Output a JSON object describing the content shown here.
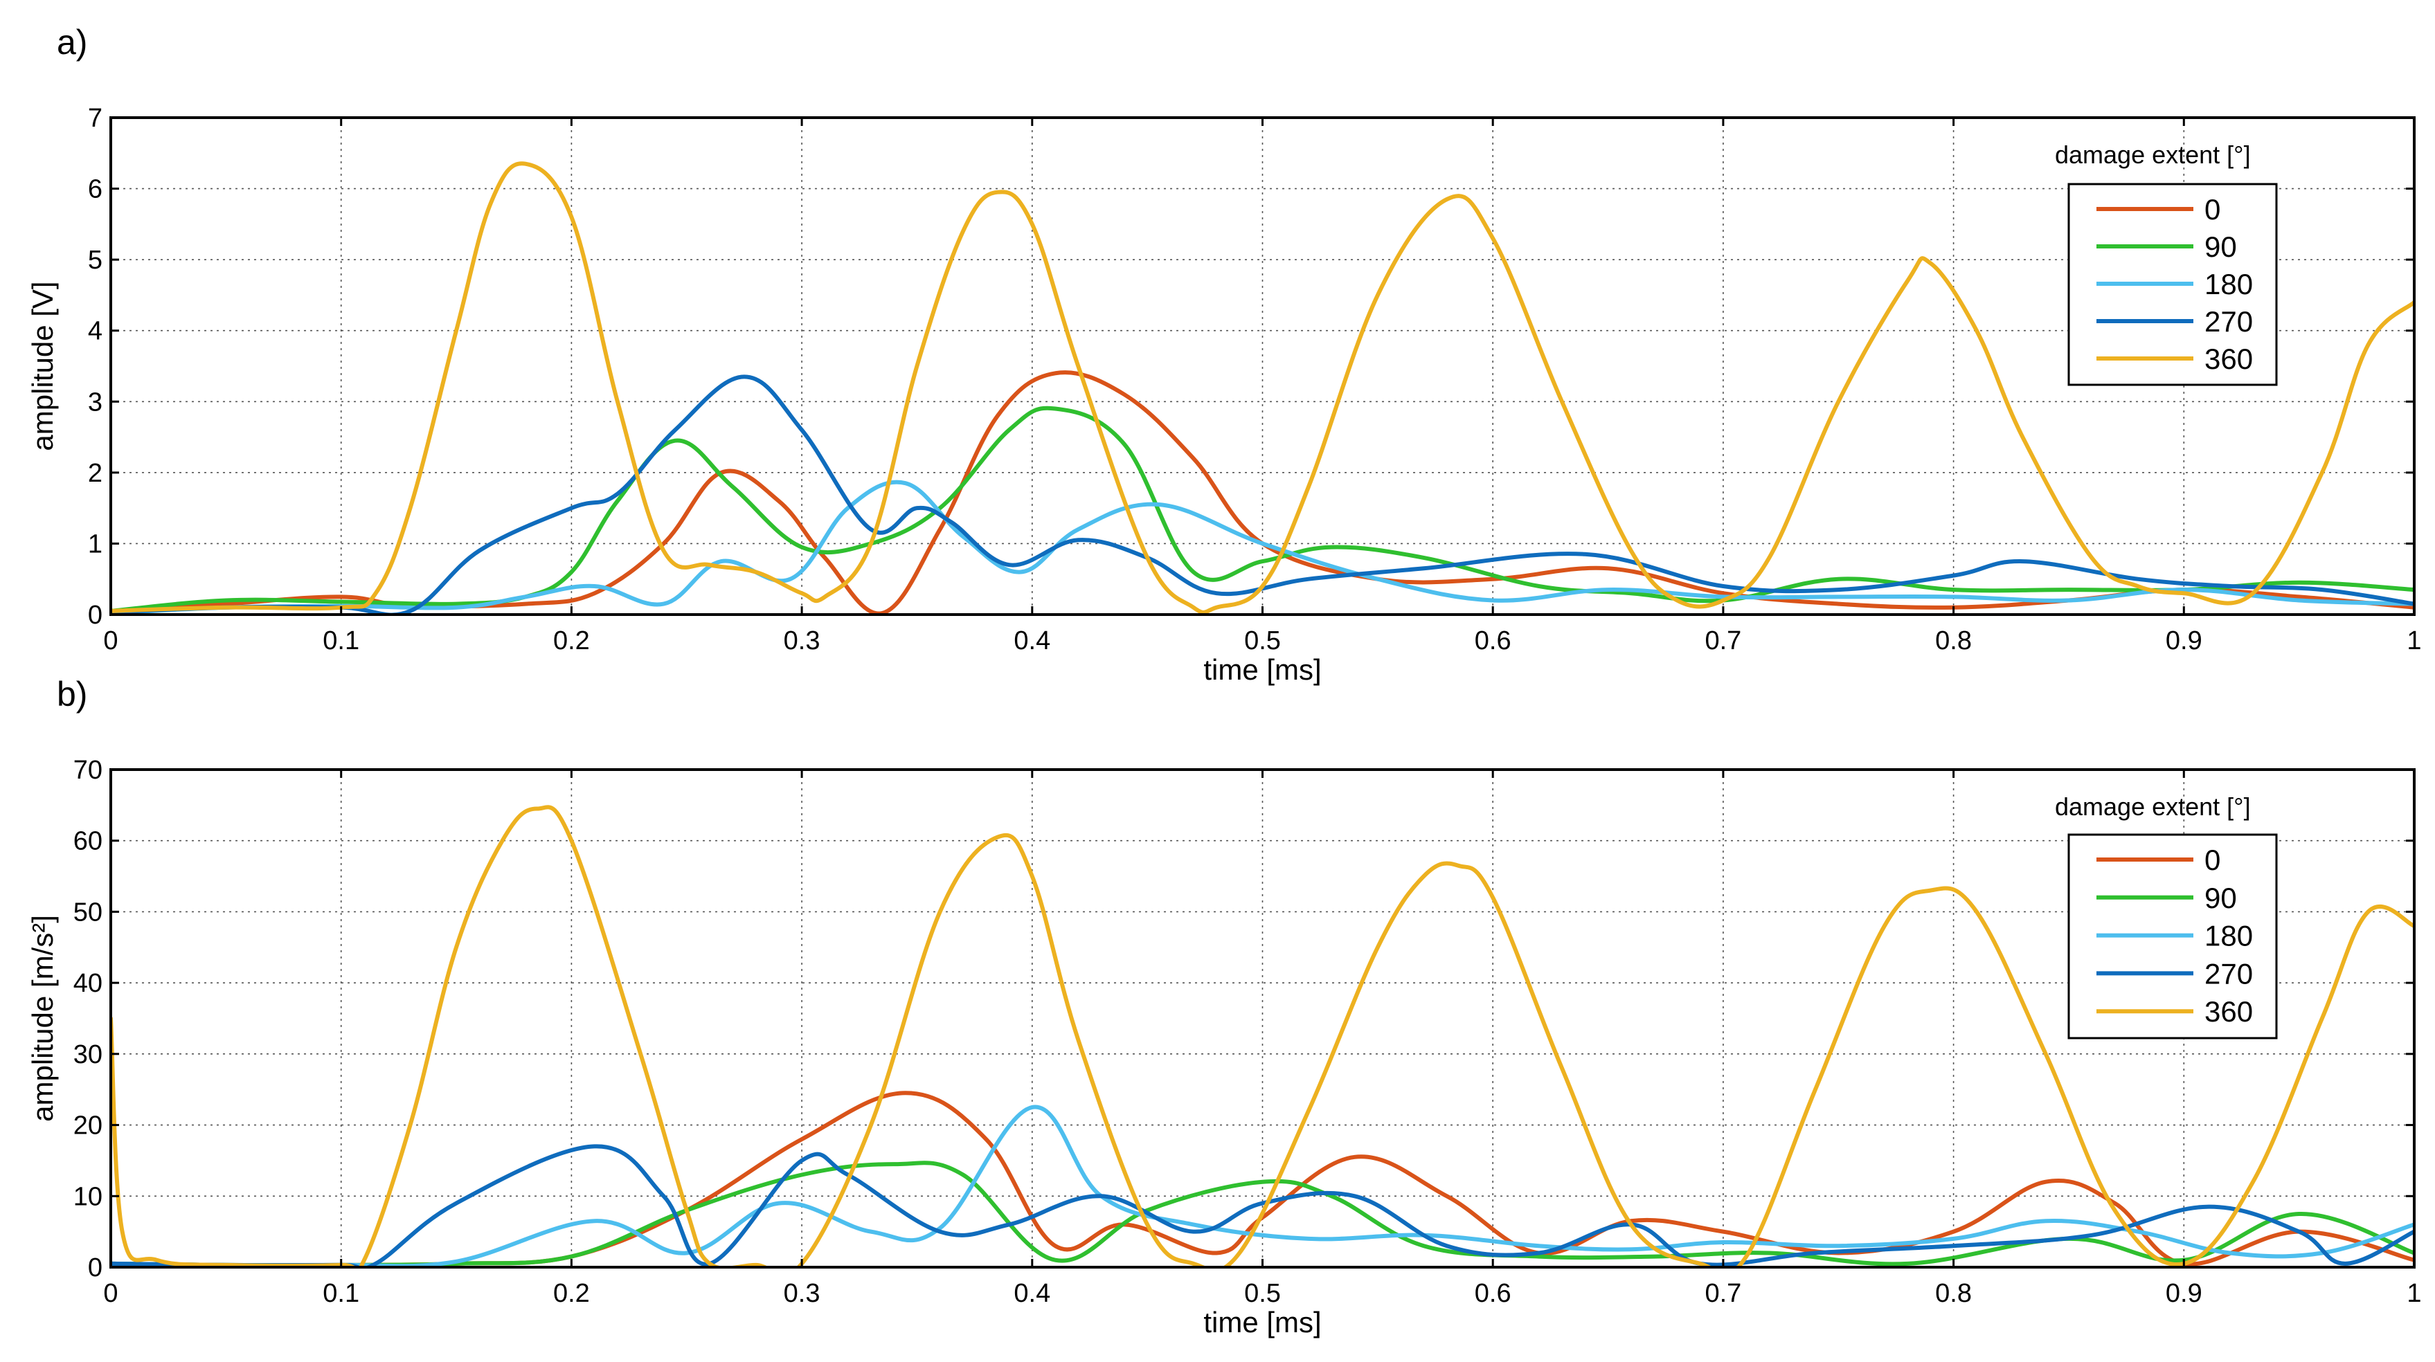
{
  "chart_data": [
    {
      "panel_label": "a)",
      "type": "line",
      "xlabel": "time [ms]",
      "ylabel": "amplitude [V]",
      "xlim": [
        0,
        1
      ],
      "ylim": [
        0,
        7
      ],
      "xticks": [
        0,
        0.1,
        0.2,
        0.3,
        0.4,
        0.5,
        0.6,
        0.7,
        0.8,
        0.9,
        1
      ],
      "xtick_labels": [
        "0",
        "0.1",
        "0.2",
        "0.3",
        "0.4",
        "0.5",
        "0.6",
        "0.7",
        "0.8",
        "0.9",
        "1"
      ],
      "yticks": [
        0,
        1,
        2,
        3,
        4,
        5,
        6,
        7
      ],
      "ytick_labels": [
        "0",
        "1",
        "2",
        "3",
        "4",
        "5",
        "6",
        "7"
      ],
      "grid": true,
      "legend_title": "damage extent [°]",
      "legend_position": "top-right",
      "series": [
        {
          "name": "0",
          "color": "#d95319",
          "x": [
            0,
            0.05,
            0.1,
            0.13,
            0.18,
            0.21,
            0.24,
            0.265,
            0.29,
            0.31,
            0.335,
            0.36,
            0.385,
            0.41,
            0.44,
            0.47,
            0.5,
            0.55,
            0.6,
            0.65,
            0.7,
            0.75,
            0.8,
            0.85,
            0.9,
            0.95,
            1
          ],
          "y": [
            0.05,
            0.15,
            0.25,
            0.12,
            0.15,
            0.3,
            1.0,
            2.0,
            1.6,
            0.8,
            0.02,
            1.2,
            2.8,
            3.4,
            3.1,
            2.2,
            1.0,
            0.5,
            0.5,
            0.65,
            0.3,
            0.15,
            0.1,
            0.2,
            0.35,
            0.25,
            0.1
          ]
        },
        {
          "name": "90",
          "color": "#2fbf2f",
          "x": [
            0,
            0.05,
            0.1,
            0.15,
            0.18,
            0.2,
            0.22,
            0.245,
            0.27,
            0.3,
            0.33,
            0.36,
            0.39,
            0.41,
            0.44,
            0.47,
            0.5,
            0.53,
            0.57,
            0.62,
            0.66,
            0.7,
            0.75,
            0.8,
            0.85,
            0.9,
            0.95,
            1
          ],
          "y": [
            0.05,
            0.2,
            0.18,
            0.15,
            0.25,
            0.6,
            1.6,
            2.45,
            1.8,
            0.95,
            1.0,
            1.5,
            2.6,
            2.9,
            2.4,
            0.6,
            0.75,
            0.95,
            0.8,
            0.4,
            0.3,
            0.2,
            0.5,
            0.35,
            0.35,
            0.35,
            0.45,
            0.35
          ]
        },
        {
          "name": "180",
          "color": "#4dbeee",
          "x": [
            0,
            0.05,
            0.1,
            0.15,
            0.18,
            0.21,
            0.24,
            0.265,
            0.295,
            0.32,
            0.345,
            0.37,
            0.395,
            0.42,
            0.455,
            0.5,
            0.55,
            0.6,
            0.65,
            0.7,
            0.75,
            0.8,
            0.85,
            0.9,
            0.95,
            1
          ],
          "y": [
            0.02,
            0.1,
            0.12,
            0.1,
            0.25,
            0.4,
            0.15,
            0.75,
            0.5,
            1.5,
            1.85,
            1.1,
            0.6,
            1.2,
            1.55,
            1.0,
            0.5,
            0.2,
            0.35,
            0.25,
            0.25,
            0.25,
            0.2,
            0.35,
            0.2,
            0.15
          ]
        },
        {
          "name": "270",
          "color": "#0f6cbd",
          "x": [
            0,
            0.05,
            0.1,
            0.13,
            0.16,
            0.2,
            0.22,
            0.245,
            0.275,
            0.3,
            0.33,
            0.35,
            0.365,
            0.39,
            0.42,
            0.45,
            0.48,
            0.52,
            0.57,
            0.64,
            0.7,
            0.75,
            0.8,
            0.83,
            0.88,
            0.92,
            0.96,
            1
          ],
          "y": [
            0.03,
            0.1,
            0.1,
            0.05,
            0.9,
            1.5,
            1.7,
            2.6,
            3.35,
            2.6,
            1.2,
            1.5,
            1.3,
            0.7,
            1.05,
            0.8,
            0.3,
            0.5,
            0.65,
            0.85,
            0.4,
            0.35,
            0.55,
            0.75,
            0.5,
            0.4,
            0.35,
            0.15
          ]
        },
        {
          "name": "360",
          "color": "#edb120",
          "x": [
            0,
            0.05,
            0.1,
            0.115,
            0.13,
            0.15,
            0.165,
            0.18,
            0.2,
            0.22,
            0.24,
            0.26,
            0.28,
            0.3,
            0.31,
            0.33,
            0.35,
            0.37,
            0.385,
            0.4,
            0.42,
            0.45,
            0.47,
            0.48,
            0.5,
            0.52,
            0.55,
            0.58,
            0.6,
            0.63,
            0.66,
            0.68,
            0.7,
            0.72,
            0.75,
            0.78,
            0.79,
            0.81,
            0.83,
            0.86,
            0.88,
            0.9,
            0.93,
            0.96,
            0.98,
            1
          ],
          "y": [
            0.05,
            0.1,
            0.1,
            0.3,
            1.5,
            4.0,
            5.8,
            6.35,
            5.6,
            3.0,
            0.9,
            0.7,
            0.6,
            0.3,
            0.25,
            1.0,
            3.5,
            5.4,
            5.95,
            5.5,
            3.5,
            0.8,
            0.1,
            0.1,
            0.4,
            1.8,
            4.5,
            5.85,
            5.3,
            3.0,
            0.9,
            0.2,
            0.2,
            0.8,
            3.0,
            4.7,
            4.95,
            4.0,
            2.5,
            0.8,
            0.4,
            0.3,
            0.3,
            2.0,
            3.8,
            4.4
          ]
        }
      ]
    },
    {
      "panel_label": "b)",
      "type": "line",
      "xlabel": "time [ms]",
      "ylabel": "amplitude [m/s²]",
      "xlim": [
        0,
        1
      ],
      "ylim": [
        0,
        70
      ],
      "xticks": [
        0,
        0.1,
        0.2,
        0.3,
        0.4,
        0.5,
        0.6,
        0.7,
        0.8,
        0.9,
        1
      ],
      "xtick_labels": [
        "0",
        "0.1",
        "0.2",
        "0.3",
        "0.4",
        "0.5",
        "0.6",
        "0.7",
        "0.8",
        "0.9",
        "1"
      ],
      "yticks": [
        0,
        10,
        20,
        30,
        40,
        50,
        60,
        70
      ],
      "ytick_labels": [
        "0",
        "10",
        "20",
        "30",
        "40",
        "50",
        "60",
        "70"
      ],
      "grid": true,
      "legend_title": "damage extent [°]",
      "legend_position": "top-right",
      "series": [
        {
          "name": "0",
          "color": "#d95319",
          "x": [
            0,
            0.05,
            0.1,
            0.15,
            0.2,
            0.25,
            0.3,
            0.345,
            0.38,
            0.41,
            0.44,
            0.48,
            0.5,
            0.54,
            0.58,
            0.62,
            0.66,
            0.7,
            0.75,
            0.8,
            0.84,
            0.87,
            0.9,
            0.95,
            1
          ],
          "y": [
            0.5,
            0.3,
            0.3,
            0.5,
            1.5,
            8,
            18,
            24.5,
            18,
            3,
            6,
            2,
            7,
            15.5,
            10,
            2,
            6.5,
            5,
            2,
            5,
            12,
            9,
            0.5,
            5,
            1
          ]
        },
        {
          "name": "90",
          "color": "#2fbf2f",
          "x": [
            0,
            0.05,
            0.1,
            0.15,
            0.2,
            0.25,
            0.3,
            0.34,
            0.37,
            0.41,
            0.45,
            0.5,
            0.53,
            0.57,
            0.62,
            0.67,
            0.72,
            0.78,
            0.85,
            0.9,
            0.95,
            1
          ],
          "y": [
            0.5,
            0.3,
            0.3,
            0.5,
            1.5,
            8,
            13,
            14.5,
            13,
            1,
            8,
            12,
            10,
            3,
            1.5,
            1.5,
            2,
            0.5,
            4,
            1,
            7.5,
            2
          ]
        },
        {
          "name": "180",
          "color": "#4dbeee",
          "x": [
            0,
            0.05,
            0.1,
            0.15,
            0.21,
            0.25,
            0.29,
            0.33,
            0.36,
            0.4,
            0.43,
            0.47,
            0.52,
            0.57,
            0.62,
            0.66,
            0.7,
            0.75,
            0.8,
            0.84,
            0.88,
            0.92,
            0.96,
            1
          ],
          "y": [
            0.5,
            0.3,
            0.3,
            0.8,
            6.5,
            2,
            9,
            5,
            5.5,
            22.5,
            10,
            6,
            4,
            4.5,
            3,
            2.5,
            3.5,
            3,
            4,
            6.5,
            5,
            2,
            2,
            6
          ]
        },
        {
          "name": "270",
          "color": "#0f6cbd",
          "x": [
            0,
            0.05,
            0.1,
            0.115,
            0.15,
            0.21,
            0.24,
            0.26,
            0.3,
            0.32,
            0.36,
            0.39,
            0.43,
            0.47,
            0.5,
            0.54,
            0.58,
            0.62,
            0.66,
            0.69,
            0.74,
            0.8,
            0.86,
            0.91,
            0.95,
            0.97,
            1
          ],
          "y": [
            0.5,
            0.3,
            0.3,
            0.5,
            9,
            17,
            10,
            0.5,
            15,
            13,
            5,
            6,
            10,
            5,
            9,
            10,
            3,
            2,
            6,
            0.5,
            2,
            3,
            4.5,
            8.5,
            5,
            0.5,
            5
          ]
        },
        {
          "name": "360",
          "color": "#edb120",
          "x": [
            0,
            0.005,
            0.02,
            0.05,
            0.1,
            0.11,
            0.13,
            0.15,
            0.17,
            0.185,
            0.2,
            0.23,
            0.25,
            0.26,
            0.28,
            0.3,
            0.33,
            0.36,
            0.385,
            0.4,
            0.42,
            0.45,
            0.47,
            0.49,
            0.52,
            0.55,
            0.57,
            0.585,
            0.6,
            0.63,
            0.66,
            0.69,
            0.71,
            0.74,
            0.77,
            0.79,
            0.81,
            0.84,
            0.87,
            0.9,
            0.93,
            0.96,
            0.98,
            1
          ],
          "y": [
            35,
            5,
            1,
            0.3,
            0.3,
            1,
            20,
            45,
            60,
            64.5,
            60,
            30,
            8,
            0.5,
            0.3,
            0.5,
            20,
            50,
            60.5,
            55,
            32,
            6,
            0.5,
            2,
            22,
            45,
            55,
            56.5,
            52,
            28,
            6,
            0.5,
            1.5,
            25,
            48,
            53,
            50,
            30,
            8,
            0.5,
            12,
            35,
            50,
            48
          ]
        }
      ]
    }
  ]
}
